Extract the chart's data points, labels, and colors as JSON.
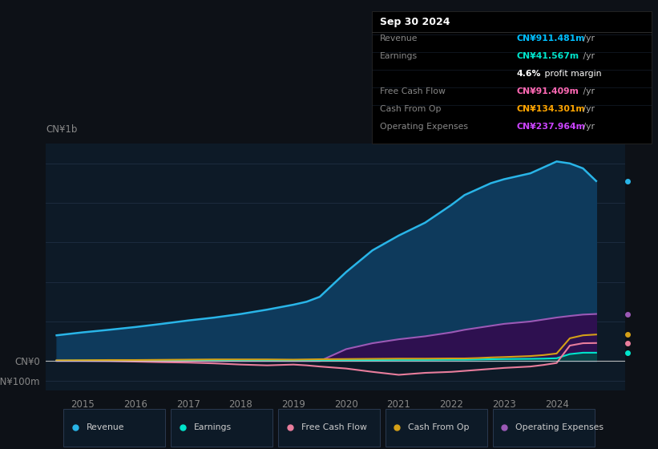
{
  "background_color": "#0d1117",
  "plot_bg_color": "#0d1a27",
  "title_box": {
    "date": "Sep 30 2024",
    "rows": [
      {
        "label": "Revenue",
        "value": "CN¥911.481m",
        "value_color": "#00bfff",
        "suffix": " /yr"
      },
      {
        "label": "Earnings",
        "value": "CN¥41.567m",
        "value_color": "#00e5cc",
        "suffix": " /yr"
      },
      {
        "label": "",
        "value": "4.6%",
        "value_color": "#ffffff",
        "suffix": " profit margin"
      },
      {
        "label": "Free Cash Flow",
        "value": "CN¥91.409m",
        "value_color": "#ff69b4",
        "suffix": " /yr"
      },
      {
        "label": "Cash From Op",
        "value": "CN¥134.301m",
        "value_color": "#ffa500",
        "suffix": " /yr"
      },
      {
        "label": "Operating Expenses",
        "value": "CN¥237.964m",
        "value_color": "#cc44ff",
        "suffix": " /yr"
      }
    ]
  },
  "ylabel_top": "CN¥1b",
  "xtick_positions": [
    2015,
    2016,
    2017,
    2018,
    2019,
    2020,
    2021,
    2022,
    2023,
    2024
  ],
  "years": [
    2014.5,
    2015.0,
    2015.5,
    2016.0,
    2016.5,
    2017.0,
    2017.5,
    2018.0,
    2018.5,
    2019.0,
    2019.25,
    2019.5,
    2020.0,
    2020.5,
    2021.0,
    2021.5,
    2022.0,
    2022.25,
    2022.5,
    2022.75,
    2023.0,
    2023.5,
    2023.75,
    2024.0,
    2024.25,
    2024.5,
    2024.75
  ],
  "revenue": [
    130,
    145,
    158,
    172,
    188,
    205,
    220,
    238,
    260,
    285,
    300,
    325,
    450,
    560,
    635,
    700,
    790,
    840,
    870,
    900,
    920,
    950,
    980,
    1010,
    1000,
    975,
    911
  ],
  "earnings": [
    2,
    3,
    3,
    4,
    4,
    5,
    5,
    5,
    5,
    4,
    4,
    4,
    5,
    5,
    6,
    6,
    7,
    7,
    8,
    9,
    10,
    11,
    12,
    14,
    35,
    42,
    42
  ],
  "free_cash_flow": [
    2,
    1,
    0,
    -3,
    -6,
    -8,
    -12,
    -18,
    -22,
    -18,
    -22,
    -28,
    -38,
    -55,
    -70,
    -60,
    -55,
    -50,
    -45,
    -40,
    -35,
    -28,
    -20,
    -10,
    78,
    90,
    91
  ],
  "cash_from_op": [
    3,
    4,
    5,
    5,
    6,
    7,
    8,
    8,
    8,
    7,
    8,
    9,
    10,
    11,
    12,
    12,
    13,
    13,
    15,
    18,
    20,
    25,
    30,
    38,
    115,
    130,
    134
  ],
  "op_expenses": [
    0,
    0,
    0,
    0,
    0,
    0,
    0,
    0,
    0,
    0,
    0,
    0,
    60,
    90,
    110,
    125,
    145,
    158,
    168,
    178,
    188,
    200,
    210,
    220,
    228,
    235,
    238
  ],
  "revenue_color": "#29b5e8",
  "revenue_fill": "#0e3a5c",
  "earnings_color": "#00e5cc",
  "earnings_fill": "#004d44",
  "free_cash_flow_color": "#e87d9c",
  "cash_from_op_color": "#d4a017",
  "op_expenses_color": "#9b59b6",
  "op_expenses_fill": "#2e1050",
  "ylim": [
    -150,
    1100
  ],
  "xlim": [
    2014.3,
    2025.3
  ],
  "legend": [
    {
      "label": "Revenue",
      "color": "#29b5e8"
    },
    {
      "label": "Earnings",
      "color": "#00e5cc"
    },
    {
      "label": "Free Cash Flow",
      "color": "#e87d9c"
    },
    {
      "label": "Cash From Op",
      "color": "#d4a017"
    },
    {
      "label": "Operating Expenses",
      "color": "#9b59b6"
    }
  ]
}
